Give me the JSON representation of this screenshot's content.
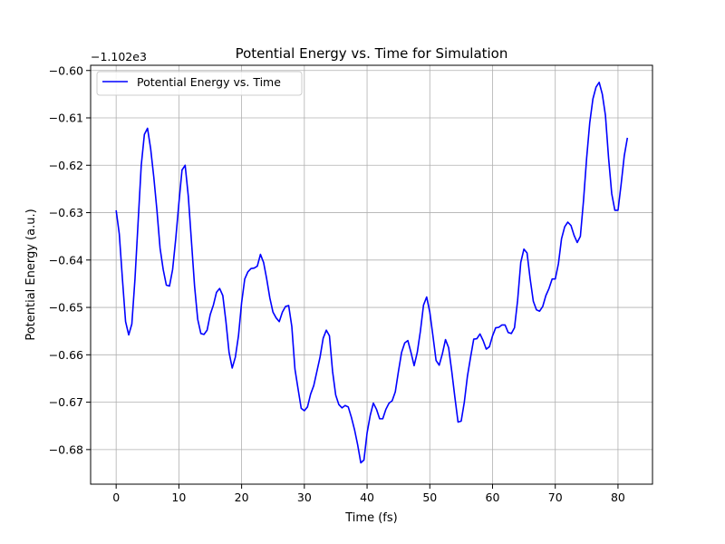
{
  "chart_data": {
    "type": "line",
    "title": "Potential Energy vs. Time for Simulation",
    "xlabel": "Time (fs)",
    "ylabel": "Potential Energy (a.u.)",
    "y_offset_label": "−1.102e3",
    "xlim": [
      -4.07,
      85.5
    ],
    "ylim": [
      -0.6873,
      -0.5989
    ],
    "x_ticks": [
      0,
      10,
      20,
      30,
      40,
      50,
      60,
      70,
      80
    ],
    "x_tick_labels": [
      "0",
      "10",
      "20",
      "30",
      "40",
      "50",
      "60",
      "70",
      "80"
    ],
    "y_ticks": [
      -0.68,
      -0.67,
      -0.66,
      -0.65,
      -0.64,
      -0.63,
      -0.62,
      -0.61,
      -0.6
    ],
    "y_tick_labels": [
      "−0.68",
      "−0.67",
      "−0.66",
      "−0.65",
      "−0.64",
      "−0.63",
      "−0.62",
      "−0.61",
      "−0.60"
    ],
    "grid": true,
    "legend_position": "top-left",
    "series": [
      {
        "name": "Potential Energy vs. Time",
        "color": "#0000ff",
        "x": [
          0,
          0.5,
          1,
          1.5,
          2,
          2.5,
          3,
          3.5,
          4,
          4.5,
          5,
          5.5,
          6,
          6.5,
          7,
          7.5,
          8,
          8.5,
          9,
          9.5,
          10,
          10.5,
          11,
          11.5,
          12,
          12.5,
          13,
          13.5,
          14,
          14.5,
          15,
          15.5,
          16,
          16.5,
          17,
          17.5,
          18,
          18.5,
          19,
          19.5,
          20,
          20.5,
          21,
          21.5,
          22,
          22.5,
          23,
          23.5,
          24,
          24.5,
          25,
          25.5,
          26,
          26.5,
          27,
          27.5,
          28,
          28.5,
          29,
          29.5,
          30,
          30.5,
          31,
          31.5,
          32,
          32.5,
          33,
          33.5,
          34,
          34.5,
          35,
          35.5,
          36,
          36.5,
          37,
          37.5,
          38,
          38.5,
          39,
          39.5,
          40,
          40.5,
          41,
          41.5,
          42,
          42.5,
          43,
          43.5,
          44,
          44.5,
          45,
          45.5,
          46,
          46.5,
          47,
          47.5,
          48,
          48.5,
          49,
          49.5,
          50,
          50.5,
          51,
          51.5,
          52,
          52.5,
          53,
          53.5,
          54,
          54.5,
          55,
          55.5,
          56,
          56.5,
          57,
          57.5,
          58,
          58.5,
          59,
          59.5,
          60,
          60.5,
          61,
          61.5,
          62,
          62.5,
          63,
          63.5,
          64,
          64.5,
          65,
          65.5,
          66,
          66.5,
          67,
          67.5,
          68,
          68.5,
          69,
          69.5,
          70,
          70.5,
          71,
          71.5,
          72,
          72.5,
          73,
          73.5,
          74,
          74.5,
          75,
          75.5,
          76,
          76.5,
          77,
          77.5,
          78,
          78.5,
          79,
          79.5,
          80,
          80.5,
          81,
          81.5
        ],
        "y": [
          -0.6295,
          -0.6345,
          -0.644,
          -0.653,
          -0.6558,
          -0.6535,
          -0.644,
          -0.632,
          -0.62,
          -0.6135,
          -0.6122,
          -0.6165,
          -0.6225,
          -0.6295,
          -0.6375,
          -0.642,
          -0.6453,
          -0.6455,
          -0.642,
          -0.6355,
          -0.628,
          -0.621,
          -0.62,
          -0.6265,
          -0.636,
          -0.6455,
          -0.6525,
          -0.6555,
          -0.6557,
          -0.6548,
          -0.6515,
          -0.6495,
          -0.6468,
          -0.646,
          -0.6475,
          -0.653,
          -0.6595,
          -0.6628,
          -0.6605,
          -0.656,
          -0.649,
          -0.644,
          -0.6425,
          -0.6418,
          -0.6417,
          -0.6413,
          -0.6388,
          -0.6405,
          -0.644,
          -0.648,
          -0.651,
          -0.6522,
          -0.653,
          -0.651,
          -0.6498,
          -0.6496,
          -0.654,
          -0.663,
          -0.6672,
          -0.6713,
          -0.6718,
          -0.671,
          -0.6683,
          -0.6665,
          -0.6635,
          -0.6605,
          -0.6565,
          -0.6548,
          -0.656,
          -0.6635,
          -0.6685,
          -0.6705,
          -0.6712,
          -0.6707,
          -0.671,
          -0.6732,
          -0.6758,
          -0.679,
          -0.6828,
          -0.6822,
          -0.6765,
          -0.6728,
          -0.6702,
          -0.6715,
          -0.6735,
          -0.6735,
          -0.6715,
          -0.6702,
          -0.6697,
          -0.6678,
          -0.6635,
          -0.6595,
          -0.6575,
          -0.657,
          -0.6595,
          -0.6623,
          -0.6595,
          -0.655,
          -0.6495,
          -0.6478,
          -0.651,
          -0.656,
          -0.6612,
          -0.6622,
          -0.6598,
          -0.6568,
          -0.6585,
          -0.6635,
          -0.669,
          -0.6742,
          -0.674,
          -0.67,
          -0.6645,
          -0.6605,
          -0.6567,
          -0.6566,
          -0.6556,
          -0.657,
          -0.6588,
          -0.6583,
          -0.656,
          -0.6543,
          -0.6542,
          -0.6537,
          -0.6537,
          -0.6553,
          -0.6555,
          -0.6543,
          -0.6485,
          -0.6405,
          -0.6377,
          -0.6385,
          -0.644,
          -0.6487,
          -0.6505,
          -0.6508,
          -0.6498,
          -0.6475,
          -0.646,
          -0.644,
          -0.644,
          -0.6408,
          -0.6355,
          -0.633,
          -0.632,
          -0.6327,
          -0.6348,
          -0.6363,
          -0.635,
          -0.6275,
          -0.6185,
          -0.611,
          -0.606,
          -0.6035,
          -0.6025,
          -0.605,
          -0.6095,
          -0.6185,
          -0.626,
          -0.6295,
          -0.6295,
          -0.624,
          -0.618,
          -0.6142
        ]
      }
    ]
  }
}
